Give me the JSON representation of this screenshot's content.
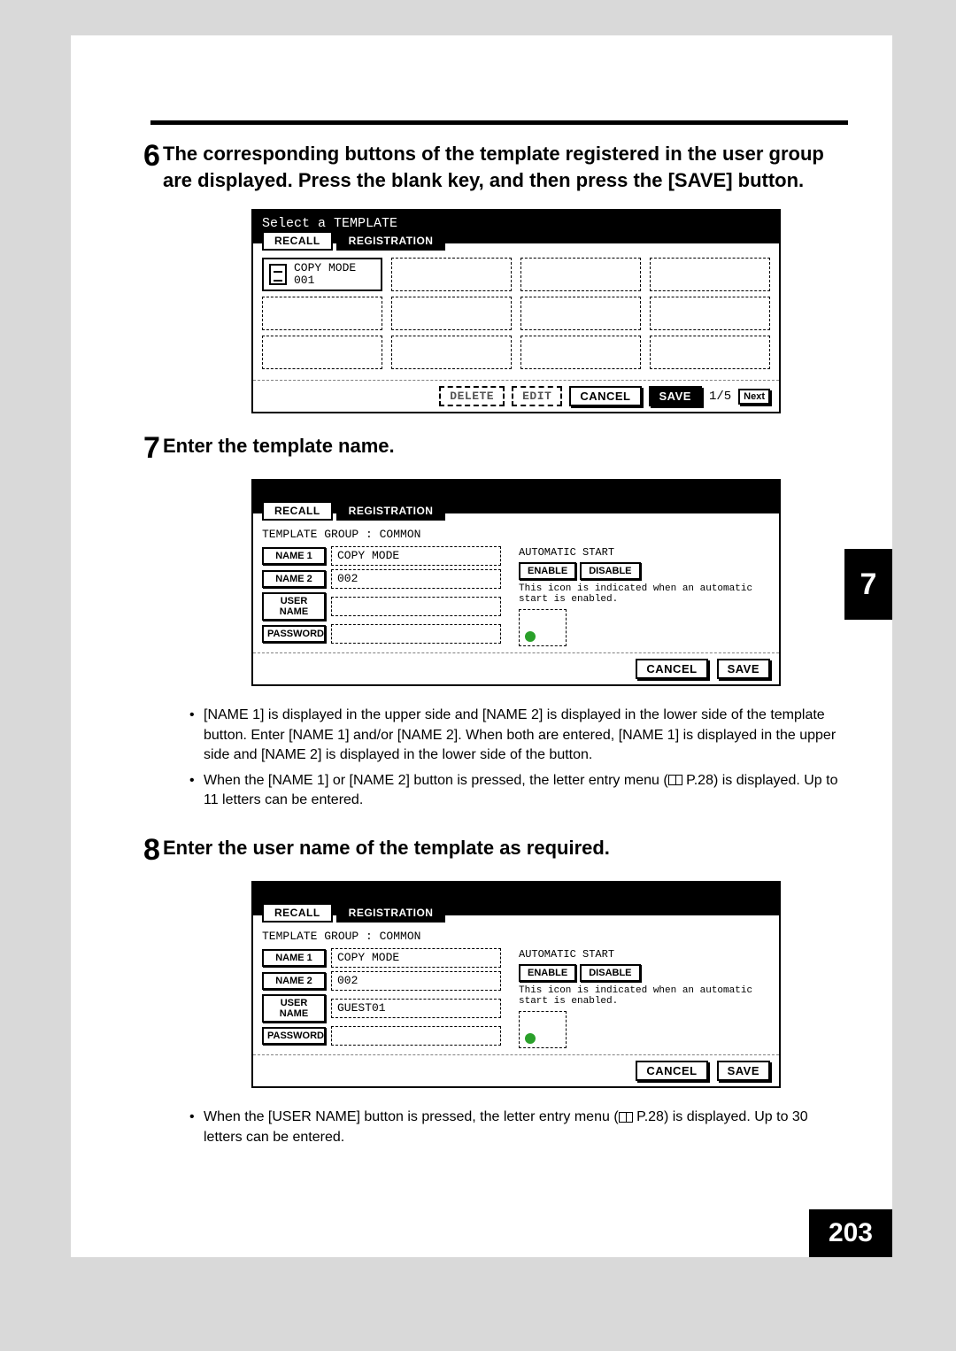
{
  "page_number": "203",
  "side_tab": "7",
  "steps": {
    "s6": {
      "num": "6",
      "text": "The corresponding buttons of the template registered in the user group are displayed. Press the blank key, and then press the [SAVE] button."
    },
    "s7": {
      "num": "7",
      "text": "Enter the template name."
    },
    "s8": {
      "num": "8",
      "text": "Enter the user name of the template as required."
    }
  },
  "ui": {
    "tabs": {
      "recall": "RECALL",
      "registration": "REGISTRATION"
    },
    "buttons": {
      "delete": "DELETE",
      "edit": "EDIT",
      "cancel": "CANCEL",
      "save": "SAVE",
      "next": "Next",
      "enable": "ENABLE",
      "disable": "DISABLE",
      "name1": "NAME 1",
      "name2": "NAME 2",
      "username": "USER NAME",
      "password": "PASSWORD"
    },
    "labels": {
      "select_template": "Select a TEMPLATE",
      "template_group": "TEMPLATE GROUP   : COMMON",
      "automatic_start": "AUTOMATIC START",
      "hint": "This icon is indicated when an automatic start is enabled.",
      "pager": "1/5"
    },
    "slot1_line1": "COPY MODE",
    "slot1_line2": "001",
    "form": {
      "name1_val": "COPY MODE",
      "name2_val": "002",
      "username_val_7": "",
      "username_val_8": "GUEST01",
      "password_val": ""
    }
  },
  "notes": {
    "n7a": "[NAME 1] is displayed in the upper side and [NAME 2] is displayed in the lower side of the template button. Enter [NAME 1] and/or [NAME 2]. When both are entered, [NAME 1] is displayed in the upper side and [NAME 2] is displayed in the lower side of the button.",
    "n7b_pre": "When the [NAME 1] or [NAME 2] button is pressed, the letter entry menu (",
    "n7b_post": " P.28) is displayed. Up to 11 letters can be entered.",
    "n8_pre": "When the [USER NAME] button is pressed, the letter entry menu (",
    "n8_post": " P.28) is displayed. Up to 30 letters can be entered."
  }
}
